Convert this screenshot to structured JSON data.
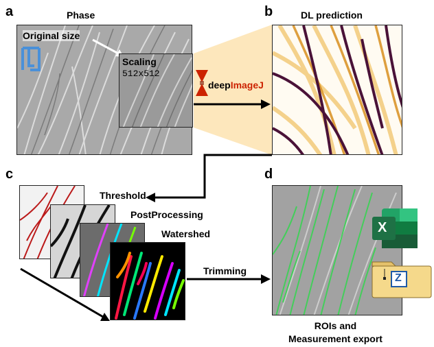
{
  "panels": {
    "a": {
      "letter": "a",
      "title": "Phase",
      "original_label": "Original size",
      "scaling_label": "Scaling",
      "scaling_size": "512x512",
      "plugin_prefix": "deep",
      "plugin_suffix": "ImageJ"
    },
    "b": {
      "letter": "b",
      "title": "DL prediction"
    },
    "c": {
      "letter": "c",
      "step1": "Threshold",
      "step2": "PostProcessing",
      "step3": "Watershed",
      "arrow_label": "Trimming"
    },
    "d": {
      "letter": "d",
      "caption_line1": "ROIs and",
      "caption_line2": "Measurement export",
      "excel_letter": "X",
      "folder_letter": "Z"
    }
  },
  "colors": {
    "logo_blue": "#4a90d9",
    "deepimagej_red": "#cc2200",
    "excel_green": "#1e7145",
    "folder_fill": "#f5d98b",
    "prediction_bg": "#fdebc4",
    "roi_green": "#39d353"
  }
}
